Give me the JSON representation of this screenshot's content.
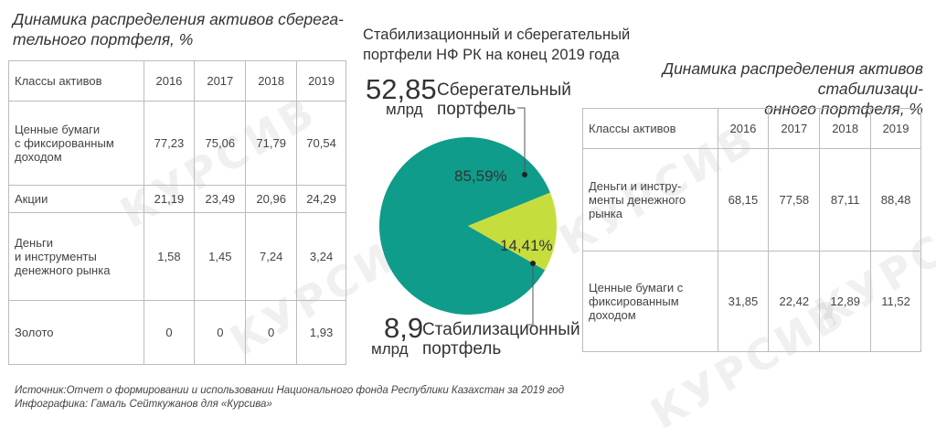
{
  "watermark": "КУРСИВ",
  "left_table": {
    "title_lines": [
      "Динамика распределения активов сберега-",
      "тельного портфеля, %"
    ],
    "header": [
      "Классы активов",
      "2016",
      "2017",
      "2018",
      "2019"
    ],
    "rows": [
      {
        "label_lines": [
          "Ценные бумаги",
          "с фиксированным",
          "доходом"
        ],
        "values": [
          "77,23",
          "75,06",
          "71,79",
          "70,54"
        ]
      },
      {
        "label_lines": [
          "Акции"
        ],
        "values": [
          "21,19",
          "23,49",
          "20,96",
          "24,29"
        ]
      },
      {
        "label_lines": [
          "Деньги",
          "и инструменты",
          "денежного рынка"
        ],
        "values": [
          "1,58",
          "1,45",
          "7,24",
          "3,24"
        ]
      },
      {
        "label_lines": [
          "Золото"
        ],
        "values": [
          "0",
          "0",
          "0",
          "1,93"
        ]
      }
    ]
  },
  "right_table": {
    "title_lines": [
      "Динамика распределения активов стабилизаци-",
      "онного портфеля, %"
    ],
    "header": [
      "Классы активов",
      "2016",
      "2017",
      "2018",
      "2019"
    ],
    "rows": [
      {
        "label_lines": [
          "Деньги и инстру-",
          "менты денежного",
          "рынка"
        ],
        "values": [
          "68,15",
          "77,58",
          "87,11",
          "88,48"
        ]
      },
      {
        "label_lines": [
          "Ценные бумаги с",
          "фиксированным",
          "доходом"
        ],
        "values": [
          "31,85",
          "22,42",
          "12,89",
          "11,52"
        ]
      }
    ]
  },
  "chart_data": {
    "type": "pie",
    "title_lines": [
      "Стабилизационный и сберегательный",
      "портфели НФ РК на конец 2019 года"
    ],
    "slices": [
      {
        "name_lines": [
          "Сберегательный",
          "портфель"
        ],
        "amount": "52,85",
        "unit": "млрд",
        "percent": 85.59,
        "percent_label": "85,59%",
        "color": "#0f9c8a"
      },
      {
        "name_lines": [
          "Стабилизационный",
          "портфель"
        ],
        "amount": "8,9",
        "unit": "млрд",
        "percent": 14.41,
        "percent_label": "14,41%",
        "color": "#c6dd3d"
      }
    ]
  },
  "footer": {
    "source": "Источник:Отчет о формировании и использовании Национального фонда Республики Казахстан за 2019 год",
    "credit": "Инфографика: Гамаль Сейткужанов для «Курсива»"
  }
}
